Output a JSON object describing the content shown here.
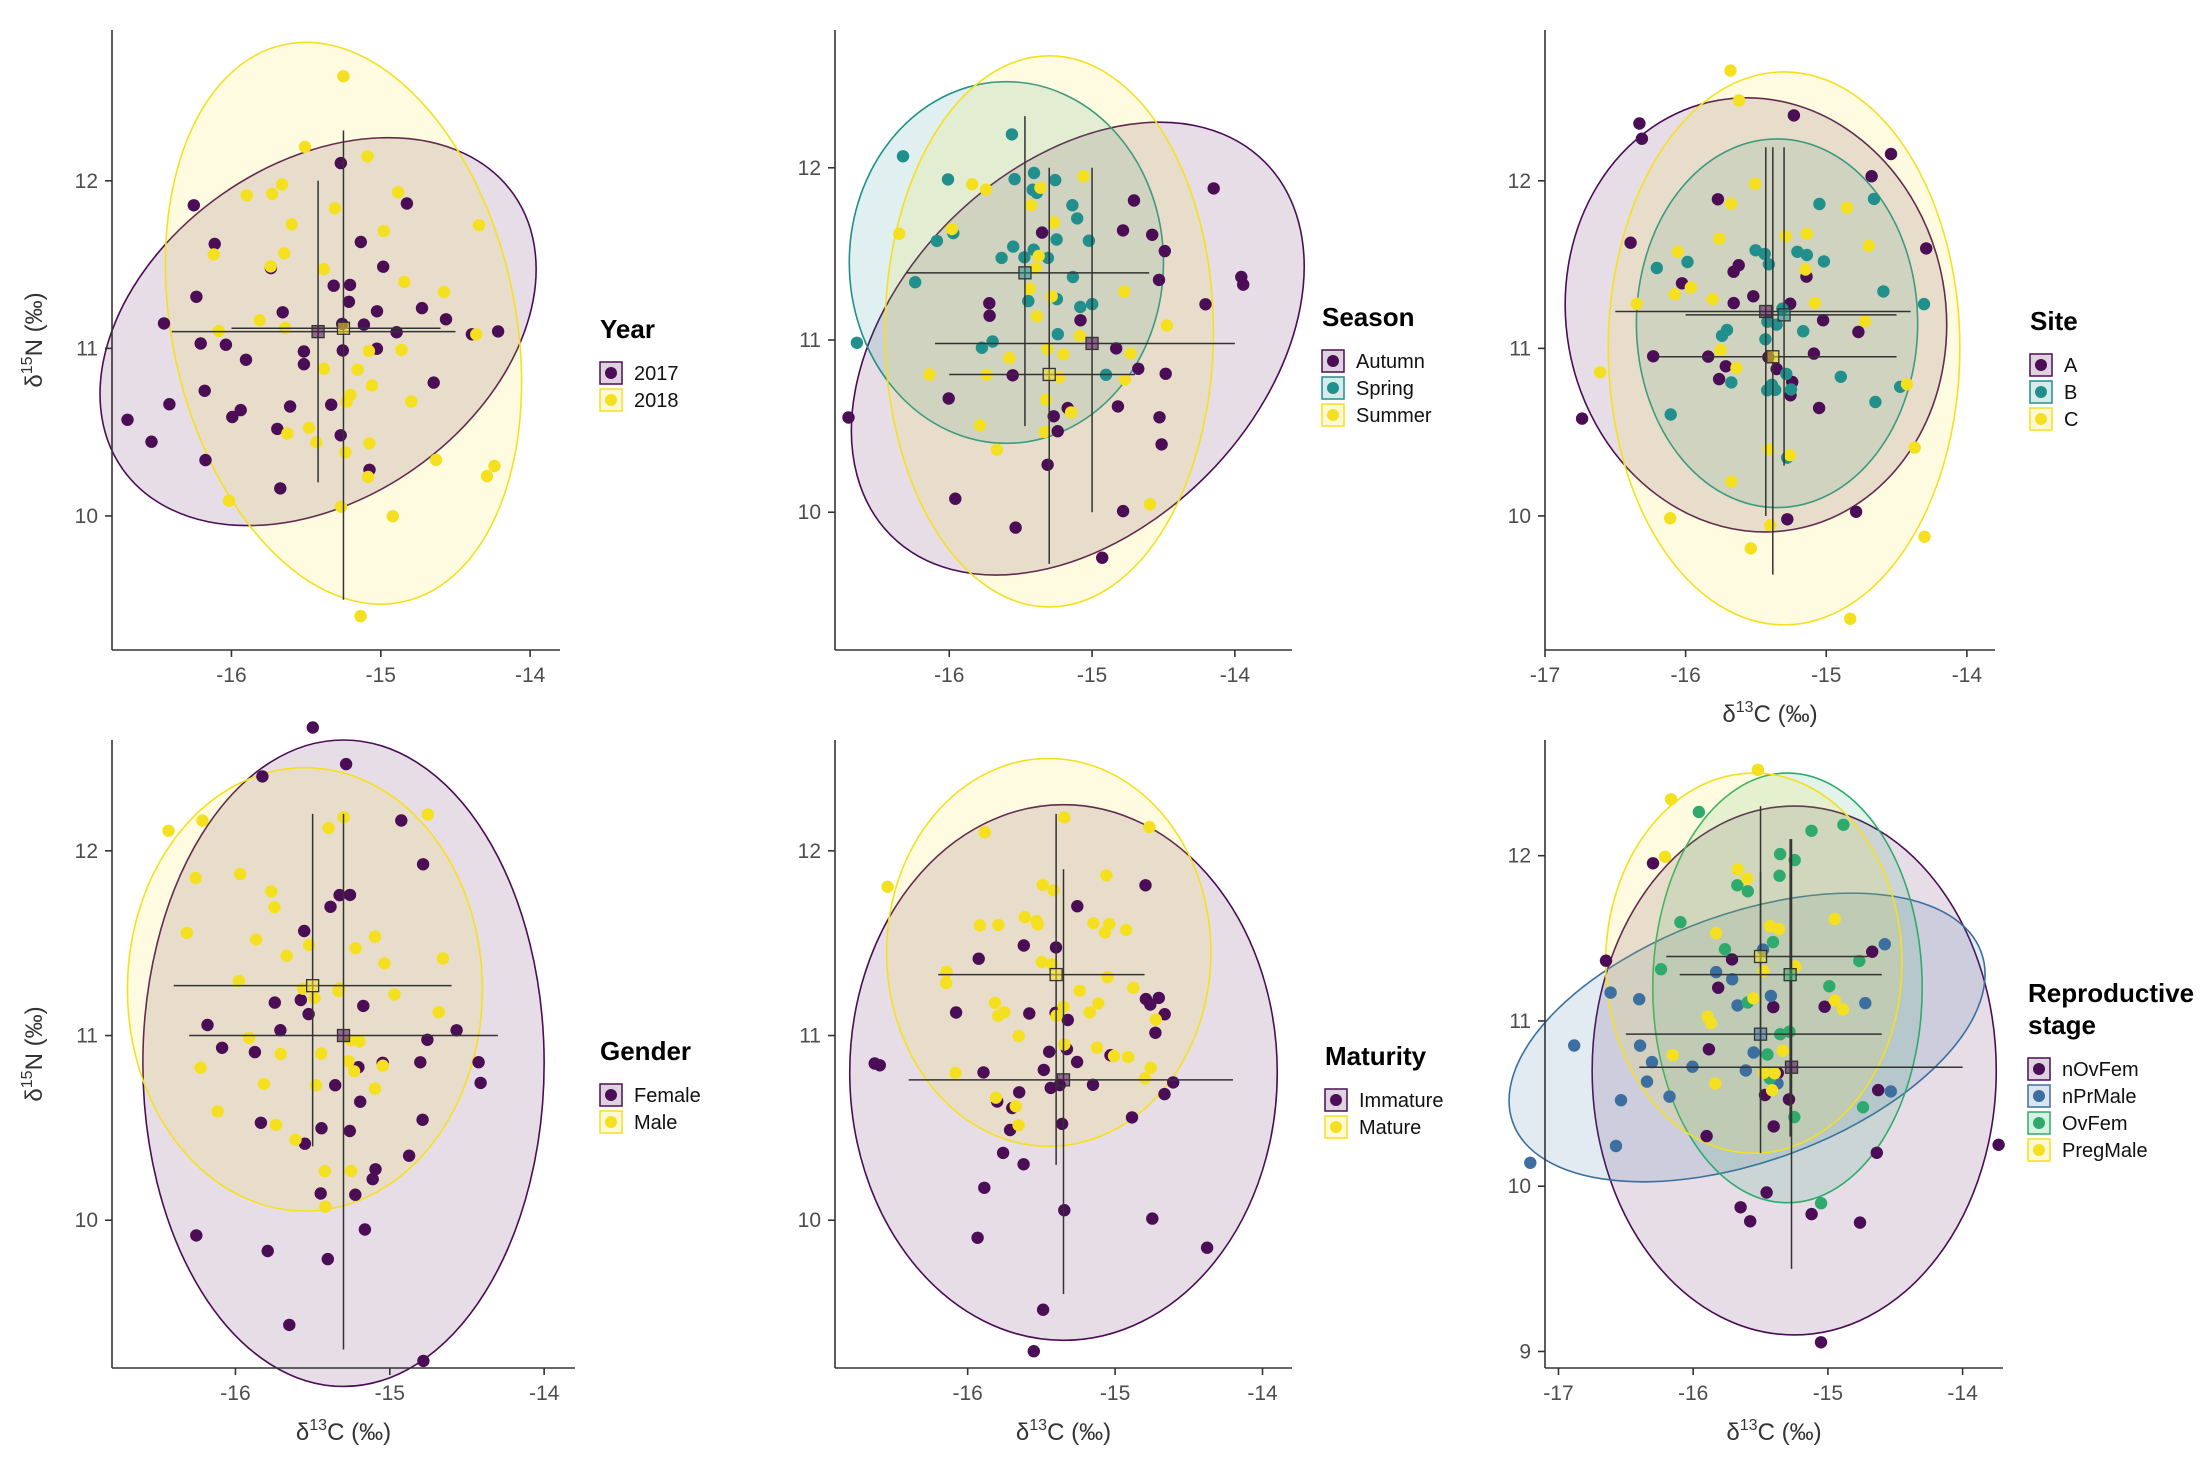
{
  "figure": {
    "axis_label_sup": {
      "n": "15",
      "c": "13"
    },
    "axis_label_elem": {
      "n": "N",
      "c": "C"
    },
    "axis_label_prefix": "δ",
    "axis_label_unit": " (‰)"
  },
  "chart_data": [
    {
      "type": "scatter",
      "id": "year",
      "legend": {
        "title": [
          "Year"
        ],
        "entries": [
          "2017",
          "2018"
        ]
      },
      "xlim": [
        -16.8,
        -13.8
      ],
      "ylim": [
        9.2,
        12.9
      ],
      "xticks": [
        -16,
        -15,
        -14
      ],
      "yticks": [
        10,
        11,
        12
      ],
      "show_xlabel": false,
      "show_ylabel": true,
      "colors": [
        "#4b0d55",
        "#f5e020"
      ],
      "series": [
        {
          "name": "2017",
          "ellipse": {
            "cx": -15.42,
            "cy": 11.1,
            "rx": 1.6,
            "ry": 1.0,
            "angle": 35
          },
          "cross": {
            "mx": -15.42,
            "my": 11.1,
            "x0": -16.4,
            "x1": -14.5,
            "y0": 10.2,
            "y1": 12.0
          }
        },
        {
          "name": "2018",
          "ellipse": {
            "cx": -15.25,
            "cy": 11.15,
            "rx": 1.15,
            "ry": 1.7,
            "angle": 12
          },
          "cross": {
            "mx": -15.25,
            "my": 11.12,
            "x0": -16.0,
            "x1": -14.6,
            "y0": 9.5,
            "y1": 12.3
          }
        }
      ]
    },
    {
      "type": "scatter",
      "id": "season",
      "legend": {
        "title": [
          "Season"
        ],
        "entries": [
          "Autumn",
          "Spring",
          "Summer"
        ]
      },
      "xlim": [
        -16.8,
        -13.6
      ],
      "ylim": [
        9.2,
        12.8
      ],
      "xticks": [
        -16,
        -15,
        -14
      ],
      "yticks": [
        10,
        11,
        12
      ],
      "show_xlabel": false,
      "show_ylabel": false,
      "colors": [
        "#4b0d55",
        "#21908c",
        "#f5e020"
      ],
      "series": [
        {
          "name": "Autumn",
          "ellipse": {
            "cx": -15.1,
            "cy": 10.95,
            "rx": 1.85,
            "ry": 1.05,
            "angle": 45
          },
          "cross": {
            "mx": -15.0,
            "my": 10.98,
            "x0": -16.1,
            "x1": -14.0,
            "y0": 10.0,
            "y1": 12.0
          }
        },
        {
          "name": "Spring",
          "ellipse": {
            "cx": -15.6,
            "cy": 11.45,
            "rx": 1.1,
            "ry": 1.05,
            "angle": 0
          },
          "cross": {
            "mx": -15.47,
            "my": 11.39,
            "x0": -16.3,
            "x1": -14.6,
            "y0": 10.5,
            "y1": 12.3
          }
        },
        {
          "name": "Summer",
          "ellipse": {
            "cx": -15.3,
            "cy": 11.05,
            "rx": 1.15,
            "ry": 1.6,
            "angle": 0
          },
          "cross": {
            "mx": -15.3,
            "my": 10.8,
            "x0": -16.0,
            "x1": -14.7,
            "y0": 9.7,
            "y1": 12.0
          }
        }
      ]
    },
    {
      "type": "scatter",
      "id": "site",
      "legend": {
        "title": [
          "Site"
        ],
        "entries": [
          "A",
          "B",
          "C"
        ]
      },
      "xlim": [
        -17.0,
        -13.8
      ],
      "ylim": [
        9.2,
        12.9
      ],
      "xticks": [
        -17,
        -16,
        -15,
        -14
      ],
      "yticks": [
        10,
        11,
        12
      ],
      "show_xlabel": true,
      "show_ylabel": false,
      "colors": [
        "#4b0d55",
        "#21908c",
        "#f5e020"
      ],
      "series": [
        {
          "name": "A",
          "ellipse": {
            "cx": -15.5,
            "cy": 11.2,
            "rx": 1.35,
            "ry": 1.3,
            "angle": 10
          },
          "cross": {
            "mx": -15.43,
            "my": 11.22,
            "x0": -16.5,
            "x1": -14.4,
            "y0": 10.0,
            "y1": 12.2
          }
        },
        {
          "name": "B",
          "ellipse": {
            "cx": -15.35,
            "cy": 11.15,
            "rx": 1.0,
            "ry": 1.1,
            "angle": 0
          },
          "cross": {
            "mx": -15.3,
            "my": 11.2,
            "x0": -16.0,
            "x1": -14.5,
            "y0": 10.3,
            "y1": 12.2
          }
        },
        {
          "name": "C",
          "ellipse": {
            "cx": -15.3,
            "cy": 11.0,
            "rx": 1.25,
            "ry": 1.65,
            "angle": 0
          },
          "cross": {
            "mx": -15.38,
            "my": 10.95,
            "x0": -16.2,
            "x1": -14.5,
            "y0": 9.65,
            "y1": 12.2
          }
        }
      ]
    },
    {
      "type": "scatter",
      "id": "gender",
      "legend": {
        "title": [
          "Gender"
        ],
        "entries": [
          "Female",
          "Male"
        ]
      },
      "xlim": [
        -16.8,
        -13.8
      ],
      "ylim": [
        9.2,
        12.6
      ],
      "xticks": [
        -16,
        -15,
        -14
      ],
      "yticks": [
        10,
        11,
        12
      ],
      "show_xlabel": true,
      "show_ylabel": true,
      "colors": [
        "#4b0d55",
        "#f5e020"
      ],
      "series": [
        {
          "name": "Female",
          "ellipse": {
            "cx": -15.3,
            "cy": 10.85,
            "rx": 1.3,
            "ry": 1.75,
            "angle": 0
          },
          "cross": {
            "mx": -15.3,
            "my": 11.0,
            "x0": -16.3,
            "x1": -14.3,
            "y0": 9.3,
            "y1": 12.2
          }
        },
        {
          "name": "Male",
          "ellipse": {
            "cx": -15.55,
            "cy": 11.25,
            "rx": 1.15,
            "ry": 1.2,
            "angle": 0
          },
          "cross": {
            "mx": -15.5,
            "my": 11.27,
            "x0": -16.4,
            "x1": -14.6,
            "y0": 10.4,
            "y1": 12.2
          }
        }
      ]
    },
    {
      "type": "scatter",
      "id": "maturity",
      "legend": {
        "title": [
          "Maturity"
        ],
        "entries": [
          "Immature",
          "Mature"
        ]
      },
      "xlim": [
        -16.9,
        -13.8
      ],
      "ylim": [
        9.2,
        12.6
      ],
      "xticks": [
        -16,
        -15,
        -14
      ],
      "yticks": [
        10,
        11,
        12
      ],
      "show_xlabel": true,
      "show_ylabel": false,
      "colors": [
        "#4b0d55",
        "#f5e020"
      ],
      "series": [
        {
          "name": "Immature",
          "ellipse": {
            "cx": -15.35,
            "cy": 10.8,
            "rx": 1.45,
            "ry": 1.45,
            "angle": 0
          },
          "cross": {
            "mx": -15.35,
            "my": 10.76,
            "x0": -16.4,
            "x1": -14.2,
            "y0": 9.6,
            "y1": 11.9
          }
        },
        {
          "name": "Mature",
          "ellipse": {
            "cx": -15.45,
            "cy": 11.45,
            "rx": 1.1,
            "ry": 1.05,
            "angle": 0
          },
          "cross": {
            "mx": -15.4,
            "my": 11.33,
            "x0": -16.2,
            "x1": -14.8,
            "y0": 10.3,
            "y1": 12.2
          }
        }
      ]
    },
    {
      "type": "scatter",
      "id": "repro",
      "legend": {
        "title": [
          "Reproductive",
          "stage"
        ],
        "entries": [
          "nOvFem",
          "nPrMale",
          "OvFem",
          "PregMale"
        ]
      },
      "xlim": [
        -17.1,
        -13.7
      ],
      "ylim": [
        8.9,
        12.7
      ],
      "xticks": [
        -17,
        -16,
        -15,
        -14
      ],
      "yticks": [
        9,
        10,
        11,
        12
      ],
      "show_xlabel": true,
      "show_ylabel": false,
      "colors": [
        "#4b0d55",
        "#3b6fa0",
        "#2eab6c",
        "#f5e020"
      ],
      "series": [
        {
          "name": "nOvFem",
          "ellipse": {
            "cx": -15.25,
            "cy": 10.7,
            "rx": 1.5,
            "ry": 1.6,
            "angle": 0
          },
          "cross": {
            "mx": -15.27,
            "my": 10.72,
            "x0": -16.4,
            "x1": -14.0,
            "y0": 9.5,
            "y1": 12.1
          }
        },
        {
          "name": "nPrMale",
          "ellipse": {
            "cx": -15.6,
            "cy": 10.9,
            "rx": 1.85,
            "ry": 0.75,
            "angle": 20
          },
          "cross": {
            "mx": -15.5,
            "my": 10.92,
            "x0": -16.5,
            "x1": -14.6,
            "y0": 10.2,
            "y1": 11.9
          }
        },
        {
          "name": "OvFem",
          "ellipse": {
            "cx": -15.3,
            "cy": 11.2,
            "rx": 1.0,
            "ry": 1.3,
            "angle": 0
          },
          "cross": {
            "mx": -15.28,
            "my": 11.28,
            "x0": -16.1,
            "x1": -14.6,
            "y0": 10.3,
            "y1": 12.1
          }
        },
        {
          "name": "PregMale",
          "ellipse": {
            "cx": -15.55,
            "cy": 11.35,
            "rx": 1.1,
            "ry": 1.15,
            "angle": 0
          },
          "cross": {
            "mx": -15.5,
            "my": 11.39,
            "x0": -16.2,
            "x1": -14.7,
            "y0": 10.4,
            "y1": 12.3
          }
        }
      ]
    }
  ]
}
